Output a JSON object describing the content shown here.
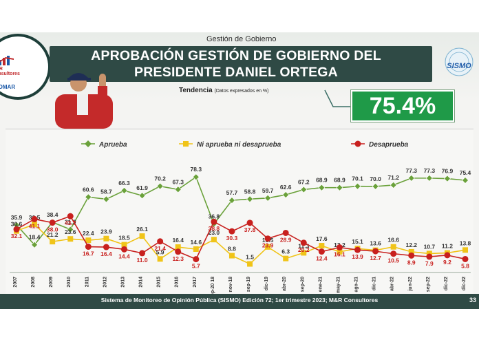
{
  "header": {
    "section": "Gestión de Gobierno",
    "title_line1": "APROBACIÓN GESTIÓN DE GOBIERNO DEL",
    "title_line2": "PRESIDENTE DANIEL ORTEGA",
    "subtitle": "Tendencia",
    "subtitle_note": "(Datos expresados en %)",
    "headline_value": "75.4%"
  },
  "logos": {
    "left_logo_text": "M&R Consultores",
    "left_logo_sub": "ESOMAR",
    "right_logo_text": "SISMO"
  },
  "footer": {
    "text": "Sistema de Monitoreo de Opinión Pública (SISMO) Edición 72;  1er trimestre 2023; M&R Consultores",
    "page": "33"
  },
  "colors": {
    "approve": "#6aa13a",
    "neutral": "#f0c419",
    "disapprove": "#c8201e",
    "header_bg": "#2f4a45",
    "headline_box": "#1f9a48"
  },
  "chart_data": {
    "type": "line",
    "categories": [
      "2007",
      "2008",
      "2009",
      "2010",
      "2011",
      "2012",
      "2013",
      "2014",
      "2015",
      "2016",
      "2017",
      "Sep-20 18",
      "nov-18",
      "sep-19",
      "dic-19",
      "abr-20",
      "sep-20",
      "ene-21",
      "may-21",
      "ago-21",
      "dic-21",
      "abr-22",
      "jun-22",
      "sep-22",
      "dic-22",
      "dic-22"
    ],
    "series": [
      {
        "name": "Aprueba",
        "color": "#6aa13a",
        "values": [
          35.9,
          18.4,
          38.4,
          31.9,
          60.6,
          58.7,
          66.3,
          61.9,
          70.2,
          67.3,
          78.3,
          36.8,
          57.7,
          58.8,
          59.7,
          62.6,
          67.2,
          68.9,
          68.9,
          70.1,
          70.0,
          71.2,
          77.3,
          77.3,
          76.9,
          75.4
        ]
      },
      {
        "name": "Ni aprueba ni desaprueba",
        "color": "#f0c419",
        "values": [
          30.6,
          36.5,
          21.2,
          23.6,
          22.4,
          23.9,
          18.5,
          26.1,
          5.9,
          16.4,
          14.6,
          23.0,
          8.8,
          1.5,
          16.5,
          6.3,
          11.3,
          17.6,
          12.2,
          15.1,
          13.6,
          16.6,
          12.2,
          10.7,
          11.2,
          13.8
        ]
      },
      {
        "name": "Desaprueba",
        "color": "#c8201e",
        "values": [
          32.1,
          41.1,
          38.0,
          43.7,
          16.7,
          16.4,
          14.4,
          11.0,
          21.4,
          12.3,
          5.7,
          38.8,
          30.3,
          37.8,
          23.9,
          28.9,
          20.2,
          12.4,
          16.1,
          13.9,
          12.7,
          10.5,
          8.9,
          7.9,
          9.2,
          5.8
        ]
      }
    ],
    "ylim": [
      0,
      90
    ],
    "legend_position": "top",
    "grid": false
  }
}
